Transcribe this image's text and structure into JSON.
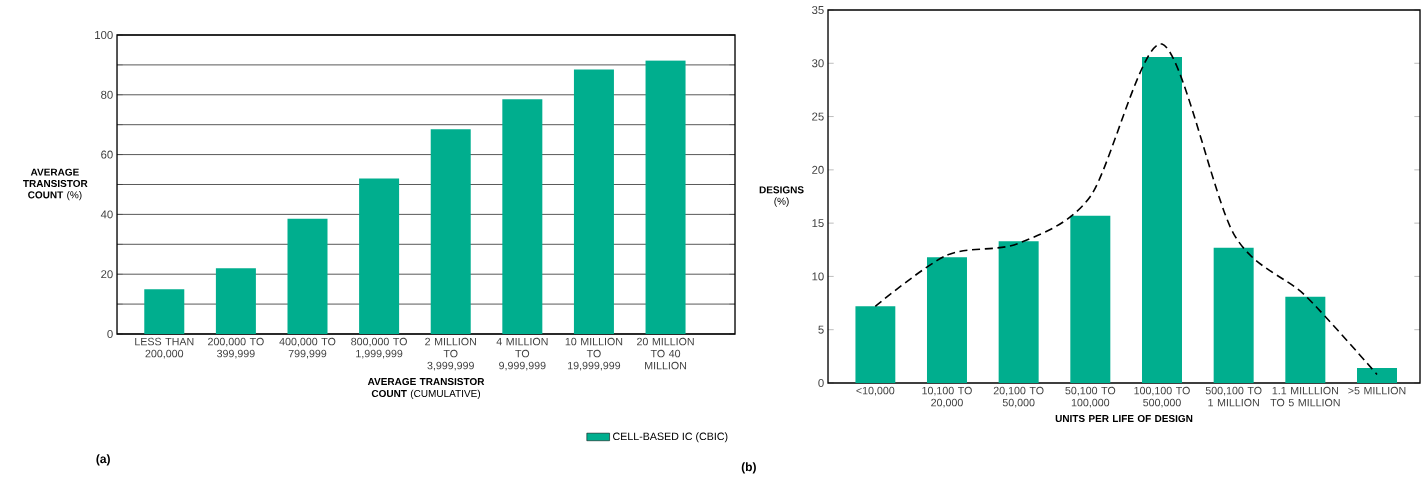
{
  "chart_data": [
    {
      "type": "bar",
      "ylabel": "**AVERAGE TRANSISTOR COUNT** (%)",
      "xlabel": "**AVERAGE TRANSISTOR COUNT** (CUMULATIVE)",
      "categories": [
        "LESS THAN 200,000",
        "200,000 TO 399,999",
        "400,000 TO 799,999",
        "800,000 TO 1,999,999",
        "2 MILLION TO 3,999,999",
        "4 MILLION TO 9,999,999",
        "10 MILLION TO 19,999,999",
        "20 MILLION TO 40 MILLION"
      ],
      "series": [
        {
          "name": "CELL-BASED IC (CBIC)",
          "color": "#00ae8e",
          "values": [
            15,
            22,
            38.5,
            52,
            68.5,
            78.5,
            88.5,
            91.5
          ]
        }
      ],
      "ylim": [
        0,
        100
      ],
      "yticks": [
        0,
        {
          "value": 10,
          "label": null
        },
        20,
        {
          "value": 30,
          "label": null
        },
        40,
        {
          "value": 50,
          "label": null
        },
        60,
        {
          "value": 70,
          "label": null
        },
        80,
        {
          "value": 90,
          "label": null
        },
        100
      ],
      "grid": "y",
      "legend": "bottom right",
      "annotations": [
        "(a)"
      ]
    },
    {
      "type": "bar",
      "ylabel": "**DESIGNS** (%)",
      "xlabel": "**UNITS PER LIFE OF DESIGN**",
      "categories": [
        "<10,000",
        "10,100 TO 20,000",
        "20,100 TO 50,000",
        "50,100 TO 100,000",
        "100,100 TO 500,000",
        "500,100 TO 1 MILLION",
        "1.1 MILLLION TO 5 MILLION",
        ">5 MILLION"
      ],
      "series": [
        {
          "color": "#00ae8e",
          "values": [
            7.2,
            11.8,
            13.3,
            15.7,
            30.6,
            12.7,
            8.1,
            1.4
          ]
        },
        {
          "type": "line",
          "color": "#000000",
          "line_style": "dashed",
          "values": [
            7.2,
            12.0,
            13.1,
            17.5,
            31.8,
            14.0,
            8.2,
            0.8
          ]
        }
      ],
      "ylim": [
        0,
        35
      ],
      "yticks": [
        0,
        5,
        10,
        15,
        20,
        25,
        30,
        35
      ],
      "marker": "none",
      "annotations": [
        "(b)"
      ]
    }
  ]
}
